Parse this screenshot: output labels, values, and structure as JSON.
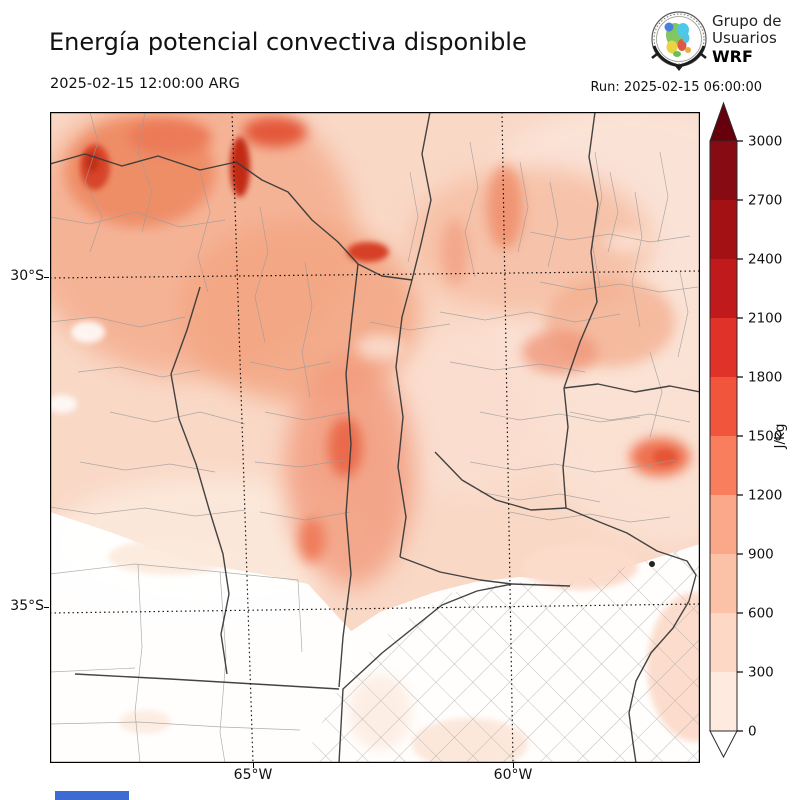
{
  "header": {
    "title": "Energía potencial convectiva disponible",
    "valid_time": "2025-02-15 12:00:00 ARG",
    "run_label": "Run: 2025-02-15 06:00:00",
    "logo": {
      "line1": "Grupo de",
      "line2": "Usuarios",
      "line3": "WRF"
    }
  },
  "map": {
    "lat_labels": [
      "30°S",
      "35°S"
    ],
    "lon_labels": [
      "65°W",
      "60°W"
    ]
  },
  "colorbar": {
    "unit_label": "J/kg",
    "tick_labels": [
      "3000",
      "2700",
      "2400",
      "2100",
      "1800",
      "1500",
      "1200",
      "900",
      "600",
      "300",
      "0"
    ],
    "segment_colors_top_to_bottom": [
      "#860b12",
      "#a31115",
      "#c01a1d",
      "#e03228",
      "#f1563d",
      "#f97e5e",
      "#fba78a",
      "#fcc2a7",
      "#fdd9c5",
      "#feeadf"
    ],
    "over_arrow_color": "#67000d",
    "under_arrow_color": "#ffffff"
  },
  "chart_data": {
    "type": "heatmap",
    "title": "Energía potencial convectiva disponible",
    "units": "J/kg",
    "levels": [
      0,
      300,
      600,
      900,
      1200,
      1500,
      1800,
      2100,
      2400,
      2700,
      3000
    ],
    "colormap": "Reds",
    "legend_position": "right",
    "extent": {
      "lon_range": [
        "~69°W",
        "~56.5°W"
      ],
      "lat_range": [
        "~27.5°S",
        "~37.5°S"
      ]
    },
    "graticule": {
      "lat": [
        "30°S",
        "35°S"
      ],
      "lon": [
        "65°W",
        "60°W"
      ]
    },
    "field_summary": "CAPE shading over central-northern Argentina: maxima ~1500-2400 J/kg in the northwest mountains, broad 300-900 J/kg across the north and east, near 0 J/kg over the southwest and most of Buenos Aires province (southeast, dense county mesh)"
  },
  "footer": {
    "progress_bar_color": "#3e6ad4"
  }
}
